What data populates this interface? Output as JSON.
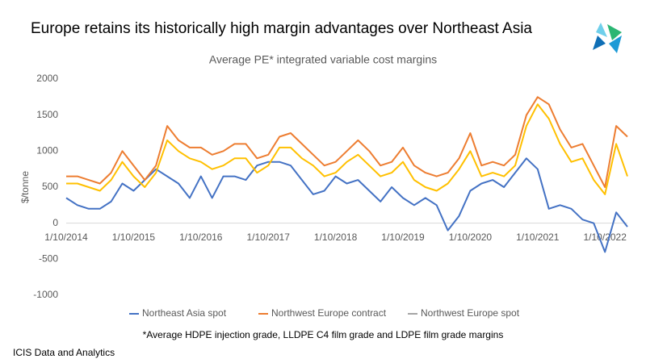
{
  "chart_data": {
    "type": "line",
    "title": "Europe retains its historically high margin advantages over Northeast Asia",
    "subtitle": "Average PE* integrated variable cost margins",
    "y_label": "$/tonne",
    "footnote": "*Average HDPE injection grade, LLDPE C4 film grade and LDPE film grade margins",
    "source": "ICIS Data and Analytics",
    "categories": [
      "1/10/2014",
      null,
      null,
      null,
      null,
      null,
      "1/10/2015",
      null,
      null,
      null,
      null,
      null,
      "1/10/2016",
      null,
      null,
      null,
      null,
      null,
      "1/10/2017",
      null,
      null,
      null,
      null,
      null,
      "1/10/2018",
      null,
      null,
      null,
      null,
      null,
      "1/10/2019",
      null,
      null,
      null,
      null,
      null,
      "1/10/2020",
      null,
      null,
      null,
      null,
      null,
      "1/10/2021",
      null,
      null,
      null,
      null,
      null,
      "1/10/2022",
      null,
      null
    ],
    "ylim": [
      -1000,
      2000
    ],
    "yticks": [
      -1000,
      -500,
      0,
      500,
      1000,
      1500,
      2000
    ],
    "grid": false,
    "legend": "bottom",
    "series": [
      {
        "name": "Northeast Asia spot",
        "color": "#4472c4",
        "values": [
          350,
          250,
          200,
          200,
          300,
          550,
          450,
          600,
          750,
          650,
          550,
          350,
          650,
          350,
          650,
          650,
          600,
          800,
          850,
          850,
          800,
          600,
          400,
          450,
          650,
          550,
          600,
          450,
          300,
          500,
          350,
          250,
          350,
          250,
          -100,
          100,
          450,
          550,
          600,
          500,
          700,
          900,
          750,
          200,
          250,
          200,
          50,
          0,
          -400,
          150,
          -50
        ]
      },
      {
        "name": "Northwest Europe contract",
        "color": "#ed7d31",
        "values": [
          650,
          650,
          600,
          550,
          700,
          1000,
          800,
          600,
          800,
          1350,
          1150,
          1050,
          1050,
          950,
          1000,
          1100,
          1100,
          900,
          950,
          1200,
          1250,
          1100,
          950,
          800,
          850,
          1000,
          1150,
          1000,
          800,
          850,
          1050,
          800,
          700,
          650,
          700,
          900,
          1250,
          800,
          850,
          800,
          950,
          1500,
          1750,
          1650,
          1300,
          1050,
          1100,
          800,
          500,
          1350,
          1200
        ]
      },
      {
        "name": "Northwest Europe spot",
        "color": "#ffc000",
        "legend_color": "#a5a5a5",
        "values": [
          550,
          550,
          500,
          450,
          600,
          850,
          650,
          500,
          700,
          1150,
          1000,
          900,
          850,
          750,
          800,
          900,
          900,
          700,
          800,
          1050,
          1050,
          900,
          800,
          650,
          700,
          850,
          950,
          800,
          650,
          700,
          850,
          600,
          500,
          450,
          550,
          750,
          1000,
          650,
          700,
          650,
          800,
          1350,
          1650,
          1450,
          1100,
          850,
          900,
          600,
          400,
          1100,
          650
        ]
      }
    ]
  }
}
